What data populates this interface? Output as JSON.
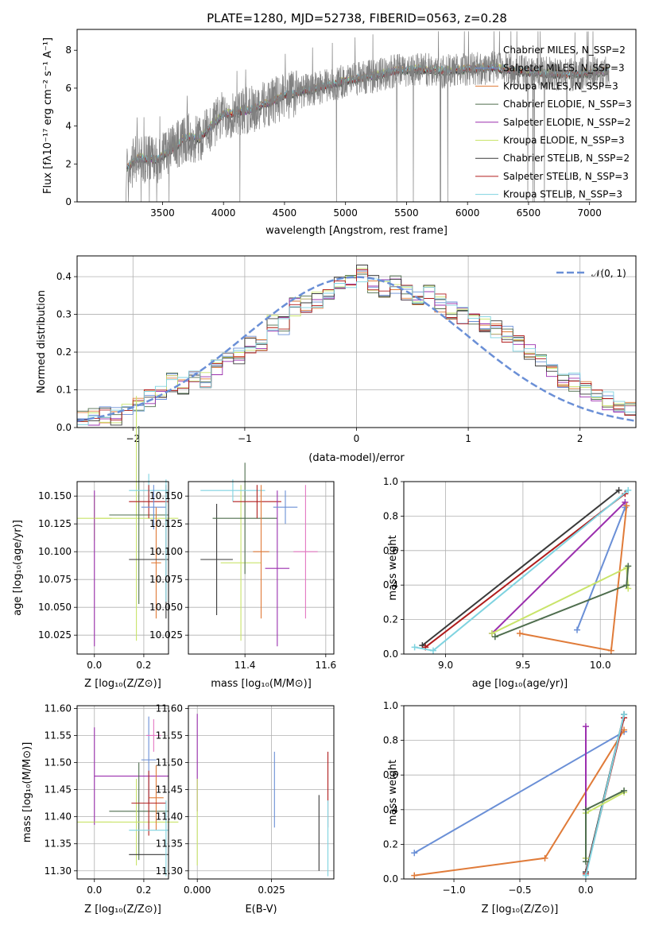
{
  "chart_data": [
    {
      "id": "spectrum",
      "type": "line",
      "title": "PLATE=1280, MJD=52738, FIBERID=0563, z=0.28",
      "xlabel": "wavelength [Angstrom, rest frame]",
      "ylabel": "Flux [fλ10⁻¹⁷ erg cm⁻² s⁻¹ A⁻¹]",
      "xlim": [
        2800,
        7380
      ],
      "ylim": [
        0,
        9.1
      ],
      "xticks": [
        3500,
        4000,
        4500,
        5000,
        5500,
        6000,
        6500,
        7000
      ],
      "yticks": [
        0,
        2,
        4,
        6,
        8
      ],
      "legend_position": "right",
      "data_anchor": {
        "x": [
          3200,
          3210,
          3300,
          3450,
          3500,
          3600,
          3700,
          3800,
          3900,
          4000,
          4200,
          4400,
          4500,
          4700,
          4900,
          5000,
          5200,
          5400,
          5600,
          5800,
          6000,
          6200,
          6400,
          6600,
          6800,
          7000,
          7160
        ],
        "y": [
          0,
          1.8,
          2.3,
          2.2,
          2.4,
          2.9,
          3.4,
          3.3,
          4.0,
          4.6,
          4.8,
          5.3,
          5.6,
          5.9,
          6.2,
          6.4,
          6.6,
          6.9,
          7.0,
          6.9,
          7.0,
          7.1,
          6.9,
          6.8,
          6.7,
          6.8,
          6.9
        ]
      },
      "series": [
        {
          "name": "Chabrier MILES, N_SSP=2",
          "color": "#ffffff"
        },
        {
          "name": "Salpeter MILES, N_SSP=3",
          "color": "#6a8fd6"
        },
        {
          "name": "Kroupa MILES, N_SSP=3",
          "color": "#e07b39"
        },
        {
          "name": "Chabrier ELODIE, N_SSP=3",
          "color": "#4f6e4e"
        },
        {
          "name": "Salpeter ELODIE, N_SSP=2",
          "color": "#9b2fae"
        },
        {
          "name": "Kroupa ELODIE, N_SSP=3",
          "color": "#c9e46a"
        },
        {
          "name": "Chabrier STELIB, N_SSP=2",
          "color": "#3a3a3a"
        },
        {
          "name": "Salpeter STELIB, N_SSP=3",
          "color": "#b01d1d"
        },
        {
          "name": "Kroupa STELIB, N_SSP=3",
          "color": "#7fd3e0"
        }
      ],
      "data_color": "#808080"
    },
    {
      "id": "residuals",
      "type": "bar",
      "xlabel": "(data-model)/error",
      "ylabel": "Normed distribution",
      "xlim": [
        -2.5,
        2.5
      ],
      "ylim": [
        0,
        0.455
      ],
      "xticks": [
        -2,
        -1,
        0,
        1,
        2
      ],
      "yticks": [
        0.0,
        0.1,
        0.2,
        0.3,
        0.4
      ],
      "grid": true,
      "legend_position": "top-right",
      "gaussian": {
        "name": "𝒩(0, 1)",
        "color": "#6a8fd6",
        "mean": 0,
        "sigma": 1
      },
      "hist_center": [
        -2.45,
        -2.35,
        -2.25,
        -2.15,
        -2.05,
        -1.95,
        -1.85,
        -1.75,
        -1.65,
        -1.55,
        -1.45,
        -1.35,
        -1.25,
        -1.15,
        -1.05,
        -0.95,
        -0.85,
        -0.75,
        -0.65,
        -0.55,
        -0.45,
        -0.35,
        -0.25,
        -0.15,
        -0.05,
        0.05,
        0.15,
        0.25,
        0.35,
        0.45,
        0.55,
        0.65,
        0.75,
        0.85,
        0.95,
        1.05,
        1.15,
        1.25,
        1.35,
        1.45,
        1.55,
        1.65,
        1.75,
        1.85,
        1.95,
        2.05,
        2.15,
        2.25,
        2.35,
        2.45
      ],
      "hist_values": [
        0.025,
        0.03,
        0.035,
        0.03,
        0.05,
        0.06,
        0.08,
        0.09,
        0.12,
        0.11,
        0.14,
        0.13,
        0.16,
        0.18,
        0.19,
        0.22,
        0.22,
        0.28,
        0.27,
        0.32,
        0.33,
        0.34,
        0.36,
        0.38,
        0.39,
        0.41,
        0.38,
        0.37,
        0.38,
        0.36,
        0.35,
        0.36,
        0.33,
        0.31,
        0.3,
        0.29,
        0.27,
        0.26,
        0.25,
        0.22,
        0.2,
        0.17,
        0.16,
        0.13,
        0.12,
        0.1,
        0.08,
        0.07,
        0.06,
        0.05
      ]
    },
    {
      "id": "age_vs_Z",
      "type": "scatter",
      "xlabel": "Z [log₁₀(Z/Z⊙)]",
      "ylabel": "age  [log₁₀(age/yr)]",
      "xlim": [
        -0.07,
        0.3
      ],
      "ylim": [
        10.008,
        10.163
      ],
      "xticks": [
        0.0,
        0.2
      ],
      "yticks": [
        10.025,
        10.05,
        10.075,
        10.1,
        10.125,
        10.15
      ],
      "grid": true,
      "points": [
        {
          "x": 0.0,
          "y": 10.13,
          "xerr": 0.07,
          "yerr": 0.02,
          "color": "#c9e46a"
        },
        {
          "x": 0.0,
          "y": 10.085,
          "xerr": 0.0,
          "yerr": 0.07,
          "color": "#9b2fae"
        },
        {
          "x": 0.17,
          "y": 10.13,
          "xerr": 0.17,
          "yerr": 0.11,
          "color": "#c9e46a"
        },
        {
          "x": 0.18,
          "y": 10.133,
          "xerr": 0.12,
          "yerr": 0.08,
          "color": "#4f6e4e"
        },
        {
          "x": 0.22,
          "y": 10.155,
          "xerr": 0.08,
          "yerr": 0.015,
          "color": "#7fd3e0"
        },
        {
          "x": 0.22,
          "y": 10.145,
          "xerr": 0.08,
          "yerr": 0.015,
          "color": "#b01d1d"
        },
        {
          "x": 0.24,
          "y": 10.14,
          "xerr": 0.05,
          "yerr": 0.02,
          "color": "#6a8fd6"
        },
        {
          "x": 0.25,
          "y": 10.09,
          "xerr": 0.02,
          "yerr": 0.05,
          "color": "#e07b39"
        },
        {
          "x": 0.22,
          "y": 10.093,
          "xerr": 0.08,
          "yerr": 0.0,
          "color": "#3a3a3a"
        },
        {
          "x": 0.29,
          "y": 10.1,
          "xerr": 0.0,
          "yerr": 0.06,
          "color": "#3a3a3a"
        },
        {
          "x": 0.29,
          "y": 10.11,
          "xerr": 0.0,
          "yerr": 0.055,
          "color": "#7fd3e0"
        }
      ]
    },
    {
      "id": "age_vs_mass",
      "type": "scatter",
      "xlabel": "mass [log₁₀(M/M⊙)]",
      "ylabel": "",
      "xlim": [
        11.26,
        11.62
      ],
      "ylim": [
        10.008,
        10.163
      ],
      "xticks": [
        11.4,
        11.6
      ],
      "yticks": [
        10.025,
        10.05,
        10.075,
        10.1,
        10.125,
        10.15
      ],
      "grid": true,
      "points": [
        {
          "x": 11.33,
          "y": 10.093,
          "xerr": 0.04,
          "yerr": 0.05,
          "color": "#3a3a3a"
        },
        {
          "x": 11.39,
          "y": 10.09,
          "xerr": 0.05,
          "yerr": 0.07,
          "color": "#c9e46a"
        },
        {
          "x": 11.4,
          "y": 10.13,
          "xerr": 0.08,
          "yerr": 0.05,
          "color": "#4f6e4e"
        },
        {
          "x": 11.37,
          "y": 10.155,
          "xerr": 0.08,
          "yerr": 0.01,
          "color": "#7fd3e0"
        },
        {
          "x": 11.43,
          "y": 10.145,
          "xerr": 0.06,
          "yerr": 0.015,
          "color": "#b01d1d"
        },
        {
          "x": 11.48,
          "y": 10.085,
          "xerr": 0.03,
          "yerr": 0.07,
          "color": "#9b2fae"
        },
        {
          "x": 11.44,
          "y": 10.1,
          "xerr": 0.02,
          "yerr": 0.06,
          "color": "#e07b39"
        },
        {
          "x": 11.5,
          "y": 10.14,
          "xerr": 0.03,
          "yerr": 0.015,
          "color": "#6a8fd6"
        },
        {
          "x": 11.55,
          "y": 10.1,
          "xerr": 0.03,
          "yerr": 0.06,
          "color": "#e377c2"
        }
      ]
    },
    {
      "id": "massweight_vs_age",
      "type": "line",
      "xlabel": "age  [log₁₀(age/yr)]",
      "ylabel": "mass weight",
      "xlim": [
        8.73,
        10.23
      ],
      "ylim": [
        0.0,
        1.0
      ],
      "xticks": [
        9.0,
        9.5,
        10.0
      ],
      "yticks": [
        0.0,
        0.2,
        0.4,
        0.6,
        0.8,
        1.0
      ],
      "grid": true,
      "series": [
        {
          "color": "#3a3a3a",
          "x": [
            8.85,
            10.12
          ],
          "y": [
            0.05,
            0.95
          ]
        },
        {
          "color": "#b01d1d",
          "x": [
            8.87,
            10.16
          ],
          "y": [
            0.04,
            0.93
          ]
        },
        {
          "color": "#7fd3e0",
          "x": [
            8.8,
            8.92,
            10.18
          ],
          "y": [
            0.04,
            0.02,
            0.95
          ]
        },
        {
          "color": "#9b2fae",
          "x": [
            9.3,
            10.16
          ],
          "y": [
            0.12,
            0.88
          ]
        },
        {
          "color": "#6a8fd6",
          "x": [
            9.85,
            10.16
          ],
          "y": [
            0.14,
            0.85
          ]
        },
        {
          "color": "#e07b39",
          "x": [
            9.48,
            10.07,
            10.17
          ],
          "y": [
            0.12,
            0.02,
            0.86
          ]
        },
        {
          "color": "#c9e46a",
          "x": [
            9.3,
            10.17,
            10.18
          ],
          "y": [
            0.12,
            0.5,
            0.38
          ]
        },
        {
          "color": "#4f6e4e",
          "x": [
            9.32,
            10.17,
            10.18
          ],
          "y": [
            0.1,
            0.4,
            0.51
          ]
        }
      ]
    },
    {
      "id": "mass_vs_Z",
      "type": "scatter",
      "xlabel": "Z [log₁₀(Z/Z⊙)]",
      "ylabel": "mass [log₁₀(M/M⊙)]",
      "xlim": [
        -0.07,
        0.3
      ],
      "ylim": [
        11.285,
        11.605
      ],
      "xticks": [
        0.0,
        0.2
      ],
      "yticks": [
        11.3,
        11.35,
        11.4,
        11.45,
        11.5,
        11.55,
        11.6
      ],
      "grid": true,
      "points": [
        {
          "x": 0.0,
          "y": 11.39,
          "xerr": 0.07,
          "yerr": 0.0,
          "color": "#c9e46a"
        },
        {
          "x": 0.0,
          "y": 11.475,
          "xerr": 0.0,
          "yerr": 0.09,
          "color": "#9b2fae"
        },
        {
          "x": 0.15,
          "y": 11.475,
          "xerr": 0.15,
          "yerr": 0.0,
          "color": "#9b2fae"
        },
        {
          "x": 0.18,
          "y": 11.41,
          "xerr": 0.12,
          "yerr": 0.09,
          "color": "#4f6e4e"
        },
        {
          "x": 0.17,
          "y": 11.39,
          "xerr": 0.17,
          "yerr": 0.08,
          "color": "#c9e46a"
        },
        {
          "x": 0.22,
          "y": 11.505,
          "xerr": 0.03,
          "yerr": 0.08,
          "color": "#6a8fd6"
        },
        {
          "x": 0.24,
          "y": 11.55,
          "xerr": 0.03,
          "yerr": 0.03,
          "color": "#e377c2"
        },
        {
          "x": 0.25,
          "y": 11.435,
          "xerr": 0.03,
          "yerr": 0.06,
          "color": "#e07b39"
        },
        {
          "x": 0.22,
          "y": 11.425,
          "xerr": 0.07,
          "yerr": 0.06,
          "color": "#b01d1d"
        },
        {
          "x": 0.22,
          "y": 11.375,
          "xerr": 0.08,
          "yerr": 0.0,
          "color": "#7fd3e0"
        },
        {
          "x": 0.22,
          "y": 11.33,
          "xerr": 0.08,
          "yerr": 0.0,
          "color": "#3a3a3a"
        },
        {
          "x": 0.29,
          "y": 11.36,
          "xerr": 0.0,
          "yerr": 0.07,
          "color": "#7fd3e0"
        }
      ]
    },
    {
      "id": "mass_vs_ebv",
      "type": "scatter",
      "xlabel": "E(B-V)",
      "ylabel": "",
      "xlim": [
        -0.003,
        0.046
      ],
      "ylim": [
        11.285,
        11.605
      ],
      "xticks": [
        0.0,
        0.025
      ],
      "yticks": [
        11.3,
        11.35,
        11.4,
        11.45,
        11.5,
        11.55,
        11.6
      ],
      "grid": true,
      "points": [
        {
          "x": 0.0,
          "y": 11.5,
          "xerr": 0.0,
          "yerr": 0.09,
          "color": "#9b2fae"
        },
        {
          "x": 0.0,
          "y": 11.39,
          "xerr": 0.0,
          "yerr": 0.08,
          "color": "#c9e46a"
        },
        {
          "x": 0.026,
          "y": 11.45,
          "xerr": 0.0,
          "yerr": 0.07,
          "color": "#6a8fd6"
        },
        {
          "x": 0.041,
          "y": 11.37,
          "xerr": 0.0,
          "yerr": 0.07,
          "color": "#3a3a3a"
        },
        {
          "x": 0.044,
          "y": 11.45,
          "xerr": 0.0,
          "yerr": 0.07,
          "color": "#b01d1d"
        },
        {
          "x": 0.044,
          "y": 11.36,
          "xerr": 0.0,
          "yerr": 0.07,
          "color": "#7fd3e0"
        }
      ]
    },
    {
      "id": "massweight_vs_Z",
      "type": "line",
      "xlabel": "Z [log₁₀(Z/Z⊙)]",
      "ylabel": "mass weight",
      "xlim": [
        -1.38,
        0.38
      ],
      "ylim": [
        0.0,
        1.0
      ],
      "xticks": [
        -1.0,
        -0.5,
        0.0
      ],
      "yticks": [
        0.0,
        0.2,
        0.4,
        0.6,
        0.8,
        1.0
      ],
      "grid": true,
      "series": [
        {
          "color": "#6a8fd6",
          "x": [
            -1.3,
            0.29
          ],
          "y": [
            0.15,
            0.85
          ]
        },
        {
          "color": "#e07b39",
          "x": [
            -1.3,
            -0.31,
            0.29
          ],
          "y": [
            0.02,
            0.12,
            0.86
          ]
        },
        {
          "color": "#9b2fae",
          "x": [
            0.0,
            0.0
          ],
          "y": [
            0.12,
            0.88
          ]
        },
        {
          "color": "#3a3a3a",
          "x": [
            0.0,
            0.29
          ],
          "y": [
            0.04,
            0.95
          ]
        },
        {
          "color": "#b01d1d",
          "x": [
            0.0,
            0.29
          ],
          "y": [
            0.03,
            0.93
          ]
        },
        {
          "color": "#7fd3e0",
          "x": [
            0.0,
            0.29
          ],
          "y": [
            0.02,
            0.95
          ]
        },
        {
          "color": "#c9e46a",
          "x": [
            0.0,
            0.0,
            0.29
          ],
          "y": [
            0.12,
            0.38,
            0.5
          ]
        },
        {
          "color": "#4f6e4e",
          "x": [
            0.0,
            0.0,
            0.29
          ],
          "y": [
            0.1,
            0.4,
            0.51
          ]
        }
      ]
    }
  ]
}
